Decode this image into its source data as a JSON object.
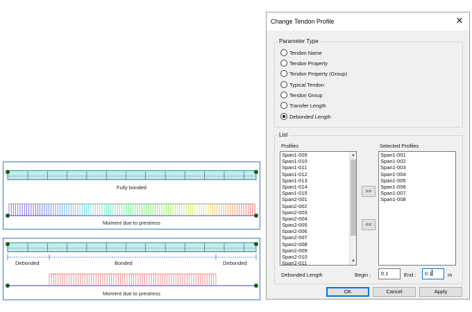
{
  "figure": {
    "top_caption": "Fully bonded",
    "top_moment_caption": "Moment due to prestress",
    "bottom_segments": [
      "Debonded",
      "Bonded",
      "Debonded"
    ],
    "bottom_moment_caption": "Moment due to prestress",
    "tendon_text": "",
    "colors": {
      "beam_fill": "#bfeef0",
      "beam_border": "#2a8a8a",
      "moment_fill": "#e46a6a",
      "axis": "#3c3ccc"
    }
  },
  "dialog": {
    "title": "Change Tendon Profile",
    "close_glyph": "✕",
    "parameter_type": {
      "label": "Parameter Type",
      "options": [
        {
          "label": "Tendon Name",
          "checked": false
        },
        {
          "label": "Tendon Property",
          "checked": false
        },
        {
          "label": "Tendon Property (Group)",
          "checked": false
        },
        {
          "label": "Typical Tendon",
          "checked": false
        },
        {
          "label": "Tendon Group",
          "checked": false
        },
        {
          "label": "Transfer Length",
          "checked": false
        },
        {
          "label": "Debonded Length",
          "checked": true
        }
      ]
    },
    "list": {
      "label": "List",
      "profiles_label": "Profiles",
      "profiles": [
        "Span1-009",
        "Span1-010",
        "Span1-011",
        "Span1-012",
        "Span1-013",
        "Span1-014",
        "Span1-015",
        "Span2-001",
        "Span2-002",
        "Span2-003",
        "Span2-004",
        "Span2-005",
        "Span2-006",
        "Span2-007",
        "Span2-008",
        "Span2-009",
        "Span2-010",
        "Span2-011"
      ],
      "selected_label": "Selected Profiles",
      "selected": [
        "Span1-001",
        "Span1-002",
        "Span1-003",
        "Span1-004",
        "Span1-005",
        "Span1-006",
        "Span1-007",
        "Span1-008"
      ],
      "add_label": ">>",
      "remove_label": "<<"
    },
    "debonded": {
      "label": "Debonded Length",
      "begin_label": "Begin :",
      "begin_value": "0.1",
      "end_label": "End :",
      "end_value": "0.1",
      "unit": "m"
    },
    "buttons": {
      "ok": "OK",
      "cancel": "Cancel",
      "apply": "Apply"
    }
  }
}
